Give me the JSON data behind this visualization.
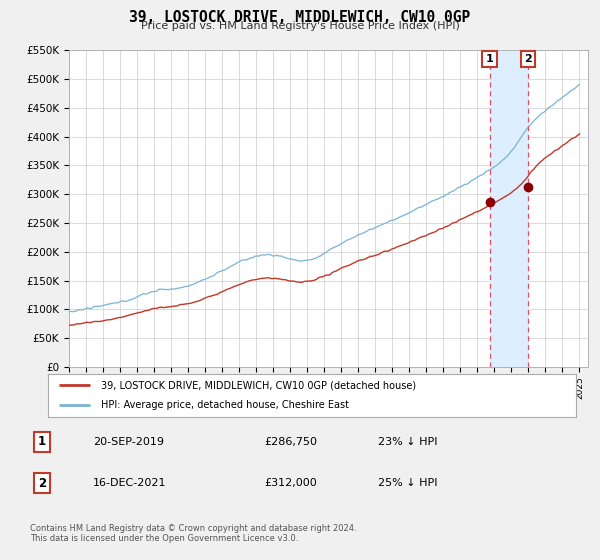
{
  "title": "39, LOSTOCK DRIVE, MIDDLEWICH, CW10 0GP",
  "subtitle": "Price paid vs. HM Land Registry's House Price Index (HPI)",
  "ylim": [
    0,
    550000
  ],
  "xlim_start": 1995.0,
  "xlim_end": 2025.5,
  "yticks": [
    0,
    50000,
    100000,
    150000,
    200000,
    250000,
    300000,
    350000,
    400000,
    450000,
    500000,
    550000
  ],
  "ytick_labels": [
    "£0",
    "£50K",
    "£100K",
    "£150K",
    "£200K",
    "£250K",
    "£300K",
    "£350K",
    "£400K",
    "£450K",
    "£500K",
    "£550K"
  ],
  "xticks": [
    1995,
    1996,
    1997,
    1998,
    1999,
    2000,
    2001,
    2002,
    2003,
    2004,
    2005,
    2006,
    2007,
    2008,
    2009,
    2010,
    2011,
    2012,
    2013,
    2014,
    2015,
    2016,
    2017,
    2018,
    2019,
    2020,
    2021,
    2022,
    2023,
    2024,
    2025
  ],
  "hpi_color": "#7ab3d4",
  "price_color": "#c0392b",
  "marker_color": "#8B0000",
  "vline_color": "#e05060",
  "shade_color": "#ddeeff",
  "legend_label_price": "39, LOSTOCK DRIVE, MIDDLEWICH, CW10 0GP (detached house)",
  "legend_label_hpi": "HPI: Average price, detached house, Cheshire East",
  "sale1_x": 2019.72,
  "sale1_y": 286750,
  "sale2_x": 2021.96,
  "sale2_y": 312000,
  "annotation1_date": "20-SEP-2019",
  "annotation1_price": "£286,750",
  "annotation1_hpi": "23% ↓ HPI",
  "annotation2_date": "16-DEC-2021",
  "annotation2_price": "£312,000",
  "annotation2_hpi": "25% ↓ HPI",
  "footer": "Contains HM Land Registry data © Crown copyright and database right 2024.\nThis data is licensed under the Open Government Licence v3.0.",
  "background_color": "#f0f0f0",
  "plot_bg_color": "#ffffff"
}
